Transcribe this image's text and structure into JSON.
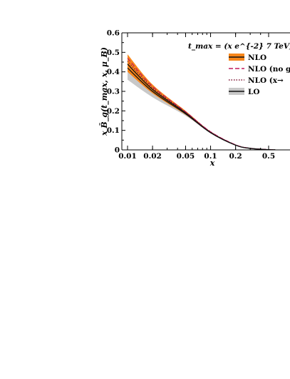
{
  "chart_data": {
    "type": "line",
    "xscale": "log",
    "xlim": [
      0.01,
      0.6
    ],
    "ylim": [
      0,
      0.6
    ],
    "grid": false,
    "legend_placement": "top-right",
    "xlabel": "x",
    "ylabel": "x B̄_g(t_max, x, μ_B)",
    "annotation": "t_max = (x e^{-2} 7 TeV)",
    "x_ticks": [
      0.01,
      0.02,
      0.05,
      0.1,
      0.2,
      0.5
    ],
    "x_tick_labels": [
      "0.01",
      "0.02",
      "0.05",
      "0.1",
      "0.2",
      "0.5"
    ],
    "y_ticks": [
      0,
      0.1,
      0.2,
      0.3,
      0.4,
      0.5,
      0.6
    ],
    "y_tick_labels": [
      "0",
      "0.1",
      "0.2",
      "0.3",
      "0.4",
      "0.5",
      "0.6"
    ],
    "x": [
      0.01,
      0.02,
      0.05,
      0.1,
      0.2,
      0.3,
      0.5,
      0.6
    ],
    "series": [
      {
        "name": "NLO",
        "style": "solid",
        "color": "#111111",
        "band_color": "#f7861a",
        "values": [
          0.44,
          0.31,
          0.19,
          0.09,
          0.025,
          0.008,
          0.0012,
          0.0004
        ],
        "band_lower": [
          0.4,
          0.29,
          0.18,
          0.087,
          0.024,
          0.0078,
          0.0011,
          0.0003
        ],
        "band_upper": [
          0.49,
          0.335,
          0.2,
          0.094,
          0.026,
          0.0085,
          0.0013,
          0.0005
        ]
      },
      {
        "name": "NLO (no g",
        "style": "dashed",
        "color": "#c2185b",
        "values": [
          0.47,
          0.325,
          0.195,
          0.093,
          0.026,
          0.0085,
          0.0013,
          0.0005
        ]
      },
      {
        "name": "NLO (x→",
        "style": "dotted",
        "color": "#7a1030",
        "values": [
          0.455,
          0.318,
          0.193,
          0.092,
          0.0255,
          0.0082,
          0.0012,
          0.0004
        ]
      },
      {
        "name": "LO",
        "style": "solid",
        "color": "#111111",
        "band_color": "#c8c8c8",
        "values": [
          0.42,
          0.3,
          0.185,
          0.088,
          0.024,
          0.0077,
          0.0011,
          0.0003
        ],
        "band_lower": [
          0.36,
          0.27,
          0.175,
          0.085,
          0.023,
          0.0074,
          0.001,
          0.0003
        ],
        "band_upper": [
          0.44,
          0.31,
          0.19,
          0.09,
          0.025,
          0.008,
          0.0012,
          0.0004
        ]
      }
    ]
  }
}
